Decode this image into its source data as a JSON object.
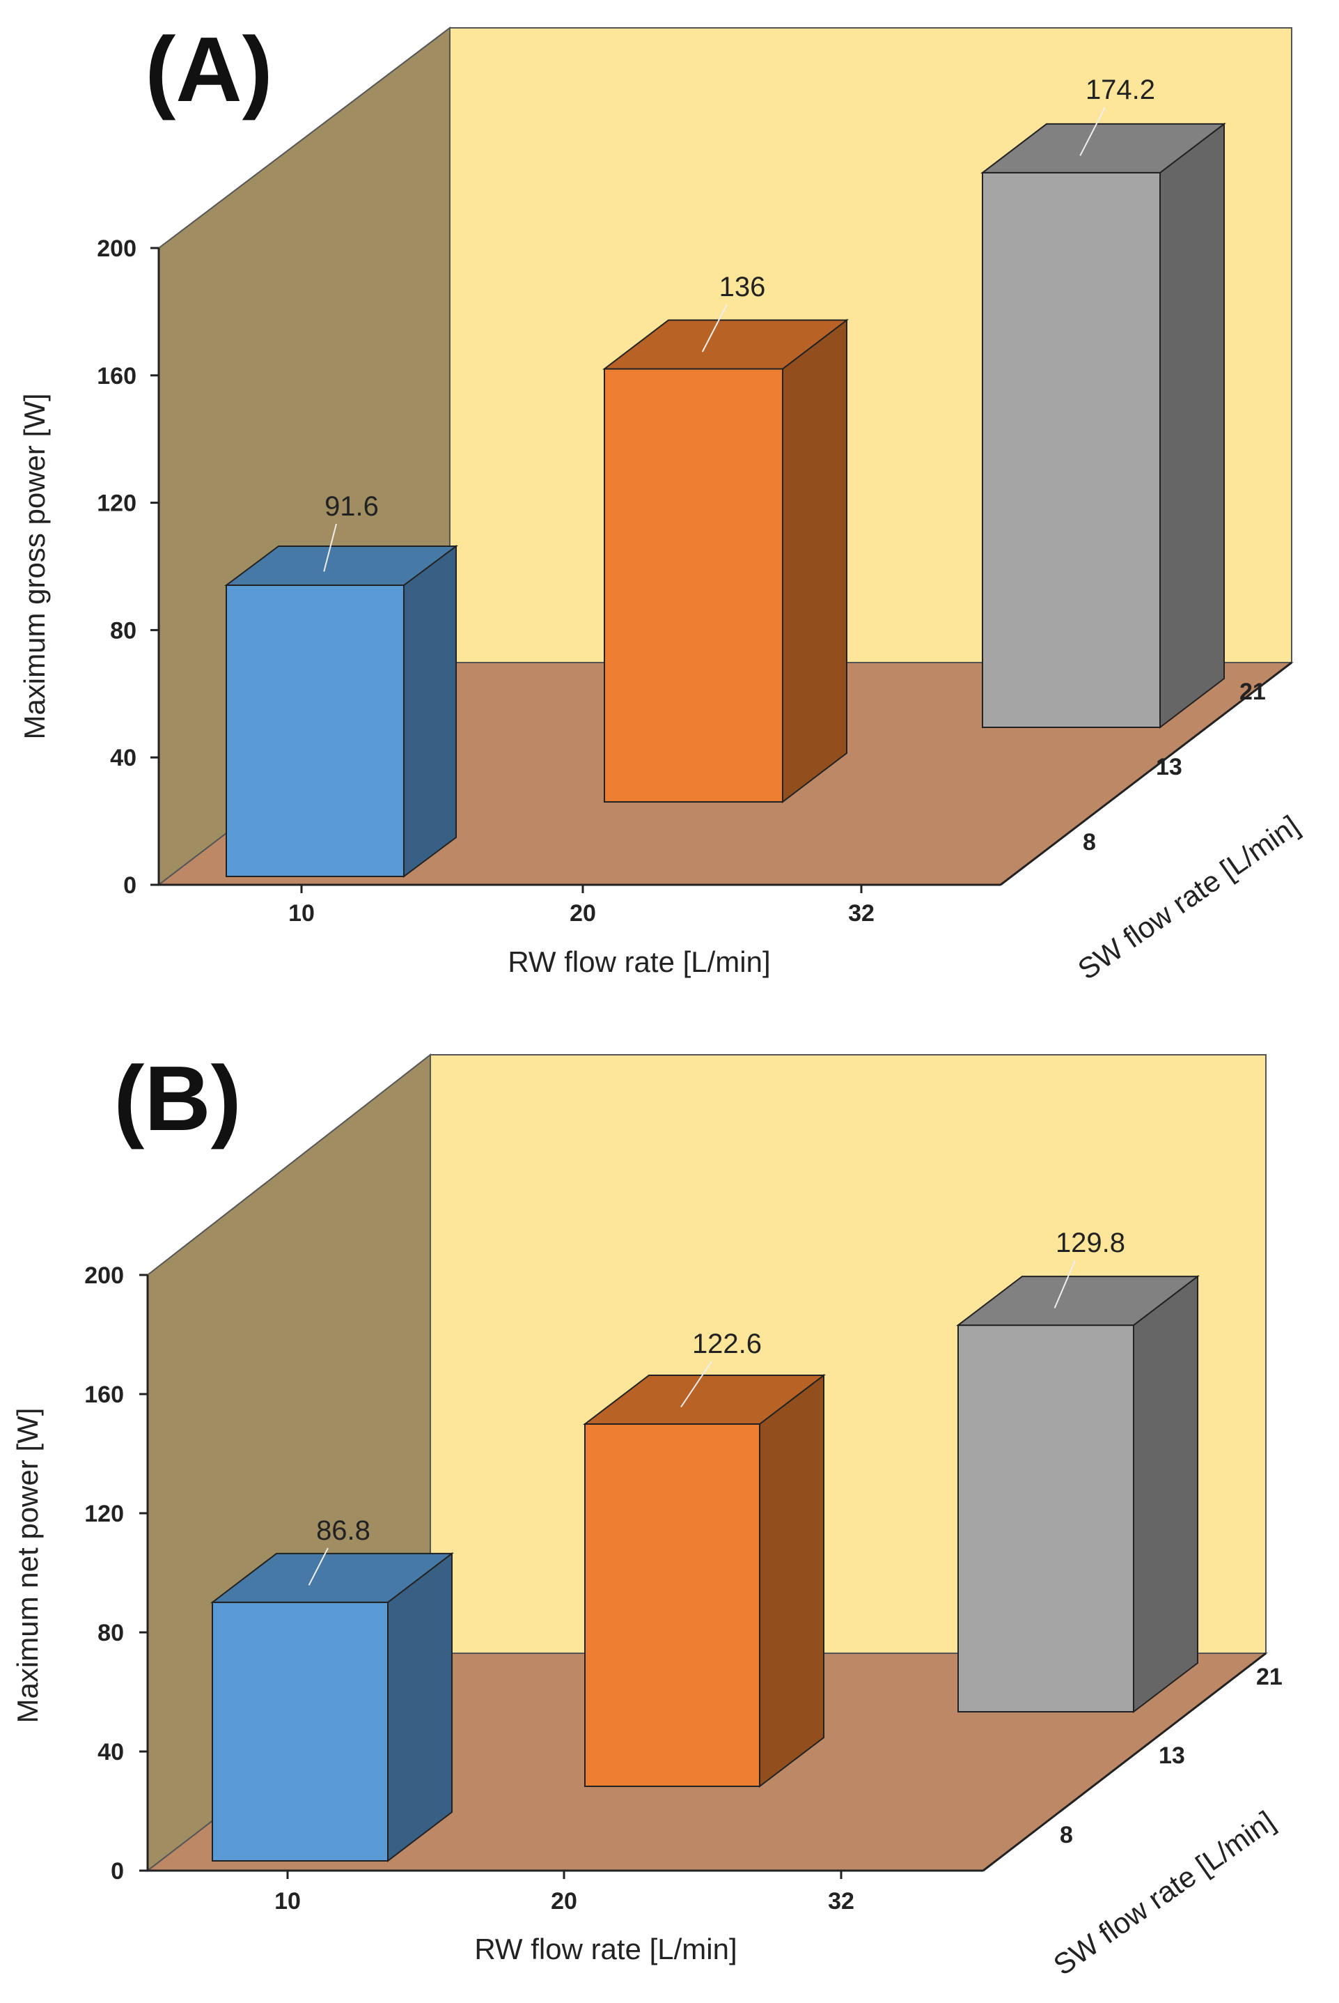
{
  "chart_data": [
    {
      "type": "bar",
      "panel": "(A)",
      "categories": [
        "10",
        "20",
        "32"
      ],
      "depth_categories": [
        "8",
        "13",
        "21"
      ],
      "values": [
        91.6,
        136,
        174.2
      ],
      "value_labels": [
        "91.6",
        "136",
        "174.2"
      ],
      "colors": [
        "#5b9bd5",
        "#ed7d31",
        "#a5a5a5"
      ],
      "xlabel": "RW flow rate [L/min]",
      "ylabel": "Maximum gross power [W]",
      "zlabel": "SW flow rate [L/min]",
      "ylim": [
        0,
        200
      ],
      "yticks": [
        "0",
        "40",
        "80",
        "120",
        "160",
        "200"
      ]
    },
    {
      "type": "bar",
      "panel": "(B)",
      "categories": [
        "10",
        "20",
        "32"
      ],
      "depth_categories": [
        "8",
        "13",
        "21"
      ],
      "values": [
        86.8,
        122.6,
        129.8
      ],
      "value_labels": [
        "86.8",
        "122.6",
        "129.8"
      ],
      "colors": [
        "#5b9bd5",
        "#ed7d31",
        "#a5a5a5"
      ],
      "xlabel": "RW flow rate [L/min]",
      "ylabel": "Maximum net power [W]",
      "zlabel": "SW flow rate [L/min]",
      "ylim": [
        0,
        200
      ],
      "yticks": [
        "0",
        "40",
        "80",
        "120",
        "160",
        "200"
      ]
    }
  ]
}
